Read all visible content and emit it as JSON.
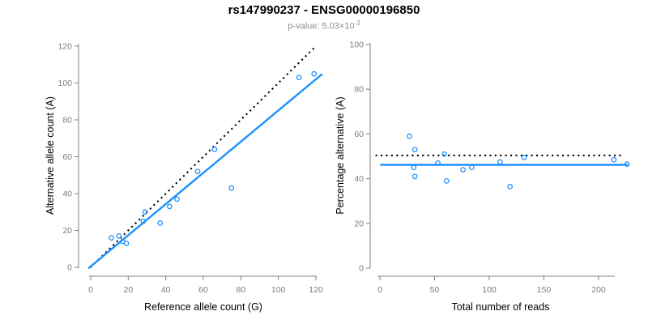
{
  "header": {
    "title": "rs147990237 - ENSG00000196850",
    "pvalue_prefix": "p-value: 5.03×10",
    "pvalue_exponent": "-3"
  },
  "colors": {
    "accent_blue": "#1E90FF",
    "dotted_line_black": "#000000",
    "axis_gray": "#808080",
    "tick_label_gray": "#7d7d7d",
    "axis_title_color": "#000000",
    "subtitle_gray": "#8f8f8f"
  },
  "chart_data": [
    {
      "type": "scatter",
      "name": "allele-counts-plot",
      "xlabel": "Reference allele count (G)",
      "ylabel": "Alternative allele count (A)",
      "xlim": [
        0,
        120
      ],
      "ylim": [
        0,
        120
      ],
      "xticks": [
        0,
        20,
        40,
        60,
        80,
        100,
        120
      ],
      "yticks": [
        0,
        20,
        40,
        60,
        80,
        100,
        120
      ],
      "grid": false,
      "points": [
        [
          11,
          16
        ],
        [
          15,
          17
        ],
        [
          17,
          14
        ],
        [
          19,
          13
        ],
        [
          28,
          25
        ],
        [
          29,
          30
        ],
        [
          37,
          24
        ],
        [
          42,
          33
        ],
        [
          46,
          37
        ],
        [
          57,
          52
        ],
        [
          66,
          64
        ],
        [
          75,
          43
        ],
        [
          111,
          103
        ],
        [
          119,
          105
        ]
      ],
      "lines": [
        {
          "name": "identity-line",
          "x1": 0,
          "y1": 0,
          "x2": 119.5,
          "y2": 119.5,
          "style": "dotted",
          "color": "#000000"
        },
        {
          "name": "regression-line",
          "x1": -0.9,
          "y1": -0.3,
          "x2": 123,
          "y2": 104.6,
          "style": "solid",
          "color": "#1E90FF"
        }
      ]
    },
    {
      "type": "scatter",
      "name": "percentage-vs-reads-plot",
      "xlabel": "Total number of reads",
      "ylabel": "Percentage alternative (A)",
      "xlim": [
        0,
        226
      ],
      "ylim": [
        0,
        100
      ],
      "xticks": [
        0,
        50,
        100,
        150,
        200
      ],
      "yticks": [
        0,
        20,
        40,
        60,
        80,
        100
      ],
      "grid": false,
      "points": [
        [
          27,
          59
        ],
        [
          32,
          53
        ],
        [
          31,
          45
        ],
        [
          32,
          41
        ],
        [
          53,
          47
        ],
        [
          59,
          51
        ],
        [
          61,
          39
        ],
        [
          76,
          44
        ],
        [
          84,
          45
        ],
        [
          110,
          47.5
        ],
        [
          119,
          36.5
        ],
        [
          132,
          49.5
        ],
        [
          214,
          48.5
        ],
        [
          226,
          46.5
        ]
      ],
      "lines": [
        {
          "name": "reference-line-50pct",
          "x1": -4,
          "y1": 50.4,
          "x2": 221,
          "y2": 50.4,
          "style": "dotted",
          "color": "#000000"
        },
        {
          "name": "mean-percentage-line",
          "x1": 1,
          "y1": 46.2,
          "x2": 226,
          "y2": 46.2,
          "style": "solid",
          "color": "#1E90FF"
        }
      ]
    }
  ]
}
